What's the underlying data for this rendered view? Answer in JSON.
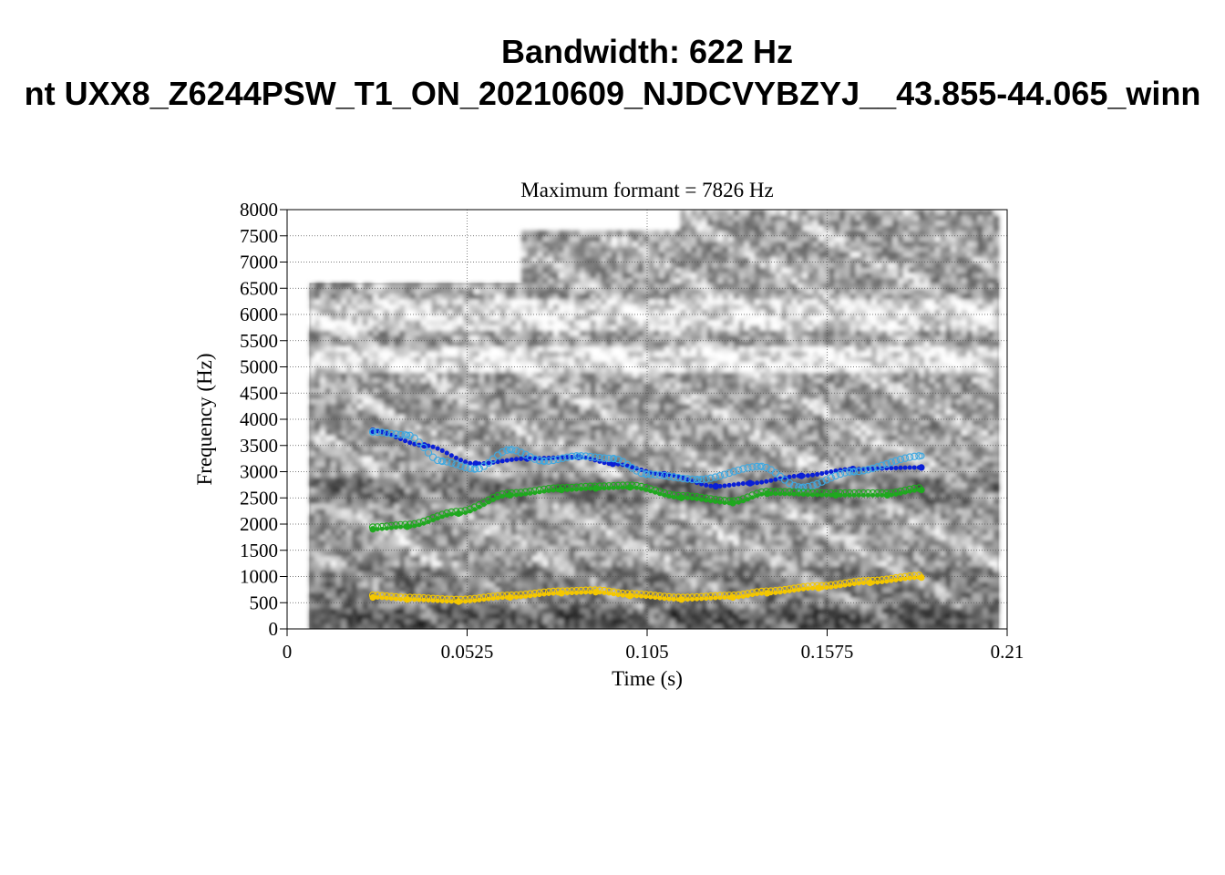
{
  "title_line1": "Bandwidth: 622 Hz",
  "title_line2": "nt UXX8_Z6244PSW_T1_ON_20210609_NJDCVYBZYJ__43.855-44.065_winn",
  "chart_data": {
    "type": "scatter",
    "subtitle": "Maximum formant  =  7826 Hz",
    "xlabel": "Time (s)",
    "ylabel": "Frequency (Hz)",
    "xlim": [
      0,
      0.21
    ],
    "ylim": [
      0,
      8000
    ],
    "x_ticks": [
      "0",
      "0.0525",
      "0.105",
      "0.1575",
      "0.21"
    ],
    "y_ticks": [
      "0",
      "500",
      "1000",
      "1500",
      "2000",
      "2500",
      "3000",
      "3500",
      "4000",
      "4500",
      "5000",
      "5500",
      "6000",
      "6500",
      "7000",
      "7500",
      "8000"
    ],
    "grid": true,
    "background": "spectrogram (grayscale)",
    "series": [
      {
        "color": "#0a1fd6",
        "style": "filled",
        "x": [
          0.025,
          0.04,
          0.055,
          0.07,
          0.085,
          0.095,
          0.11,
          0.125,
          0.135,
          0.15,
          0.165,
          0.185
        ],
        "y": [
          3780,
          3500,
          3150,
          3250,
          3280,
          3150,
          2950,
          2720,
          2780,
          2920,
          3050,
          3080
        ]
      },
      {
        "color": "#3fa8e0",
        "style": "open",
        "x": [
          0.025,
          0.035,
          0.045,
          0.055,
          0.065,
          0.075,
          0.085,
          0.095,
          0.105,
          0.12,
          0.138,
          0.15,
          0.165,
          0.185
        ],
        "y": [
          3760,
          3700,
          3200,
          3050,
          3420,
          3200,
          3300,
          3250,
          2950,
          2850,
          3100,
          2700,
          3000,
          3300
        ]
      },
      {
        "color": "#1fa81f",
        "style": "both",
        "x": [
          0.025,
          0.035,
          0.05,
          0.065,
          0.08,
          0.09,
          0.1,
          0.115,
          0.13,
          0.14,
          0.16,
          0.175,
          0.185
        ],
        "y": [
          1900,
          1950,
          2200,
          2550,
          2650,
          2680,
          2700,
          2500,
          2400,
          2580,
          2550,
          2550,
          2650
        ]
      },
      {
        "color": "#f5c800",
        "style": "both",
        "x": [
          0.025,
          0.035,
          0.05,
          0.065,
          0.08,
          0.09,
          0.1,
          0.115,
          0.13,
          0.14,
          0.155,
          0.17,
          0.185
        ],
        "y": [
          600,
          560,
          520,
          600,
          680,
          700,
          630,
          560,
          600,
          680,
          780,
          880,
          980
        ]
      }
    ]
  }
}
